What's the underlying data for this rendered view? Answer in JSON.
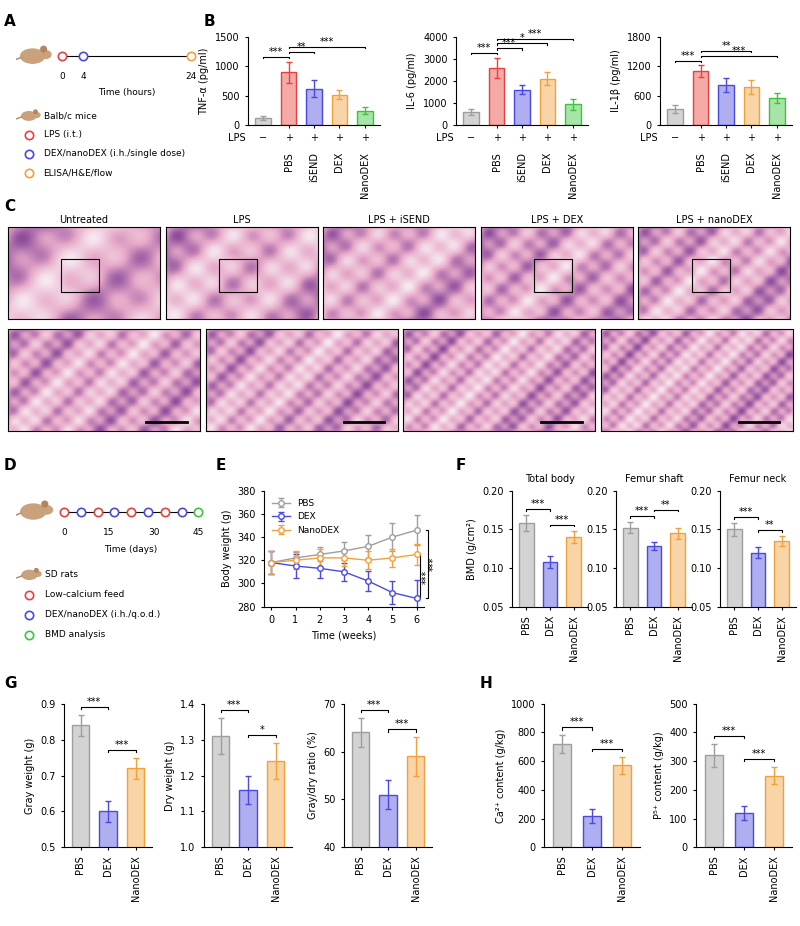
{
  "panel_letters": [
    "A",
    "B",
    "C",
    "D",
    "E",
    "F",
    "G",
    "H"
  ],
  "panels": {
    "A": {
      "subject": "Balb/c mice",
      "time_ticks": [
        0,
        4,
        24
      ],
      "time_label": "Time (hours)",
      "events": [
        {
          "text": "LPS (i.t.)",
          "color": "#e8413c",
          "times": [
            0
          ]
        },
        {
          "text": "DEX/nanoDEX (i.h./single dose)",
          "color": "#4a4ae0",
          "times": [
            4
          ]
        },
        {
          "text": "ELISA/H&E/flow",
          "color": "#f2a03c",
          "times": [
            24
          ]
        }
      ]
    },
    "C": {
      "titles": [
        "Untreated",
        "LPS",
        "LPS + iSEND",
        "LPS + DEX",
        "LPS + nanoDEX"
      ]
    },
    "D": {
      "subject": "SD rats",
      "time_ticks": [
        0,
        15,
        30,
        45
      ],
      "time_label": "Time (days)",
      "events": [
        {
          "text": "Low-calcium feed",
          "color": "#e8413c",
          "times": [
            0,
            11.25,
            22.5,
            33.75
          ]
        },
        {
          "text": "DEX/nanoDEX (i.h./q.o.d.)",
          "color": "#4a4ae0",
          "times": [
            5.625,
            16.875,
            28.125,
            39.375
          ]
        },
        {
          "text": "BMD analysis",
          "color": "#3cc43c",
          "times": [
            45
          ]
        }
      ]
    }
  },
  "chart_data": [
    {
      "type": "bar",
      "categories": [
        null,
        "PBS",
        "iSEND",
        "DEX",
        "NanoDEX"
      ],
      "values": [
        120,
        900,
        620,
        520,
        240
      ],
      "errors": [
        40,
        180,
        150,
        80,
        60
      ],
      "colors": [
        "#9e9e9e",
        "#e8413c",
        "#4a4ae0",
        "#f2a03c",
        "#3cc43c"
      ],
      "ylabel": "TNF-α (pg/ml)",
      "ylim": [
        0,
        1500
      ],
      "yticks": [
        0,
        500,
        1000,
        1500
      ],
      "lps_row": {
        "label": "LPS",
        "values": [
          "−",
          "+",
          "+",
          "+",
          "+"
        ]
      },
      "significance": [
        {
          "from": 0,
          "to": 1,
          "text": "***"
        },
        {
          "from": 1,
          "to": 2,
          "text": "**"
        },
        {
          "from": 1,
          "to": 4,
          "text": "***"
        }
      ]
    },
    {
      "type": "bar",
      "categories": [
        null,
        "PBS",
        "iSEND",
        "DEX",
        "NanoDEX"
      ],
      "values": [
        600,
        2600,
        1600,
        2100,
        950
      ],
      "errors": [
        150,
        450,
        200,
        300,
        250
      ],
      "colors": [
        "#9e9e9e",
        "#e8413c",
        "#4a4ae0",
        "#f2a03c",
        "#3cc43c"
      ],
      "ylabel": "IL-6 (pg/ml)",
      "ylim": [
        0,
        4000
      ],
      "yticks": [
        0,
        1000,
        2000,
        3000,
        4000
      ],
      "lps_row": {
        "label": "LPS",
        "values": [
          "−",
          "+",
          "+",
          "+",
          "+"
        ]
      },
      "significance": [
        {
          "from": 0,
          "to": 1,
          "text": "***"
        },
        {
          "from": 1,
          "to": 2,
          "text": "***"
        },
        {
          "from": 1,
          "to": 3,
          "text": "*"
        },
        {
          "from": 1,
          "to": 4,
          "text": "***"
        }
      ]
    },
    {
      "type": "bar",
      "categories": [
        null,
        "PBS",
        "iSEND",
        "DEX",
        "NanoDEX"
      ],
      "values": [
        320,
        1100,
        820,
        780,
        560
      ],
      "errors": [
        80,
        120,
        150,
        140,
        100
      ],
      "colors": [
        "#9e9e9e",
        "#e8413c",
        "#4a4ae0",
        "#f2a03c",
        "#3cc43c"
      ],
      "ylabel": "IL-1β (pg/ml)",
      "ylim": [
        0,
        1800
      ],
      "yticks": [
        0,
        600,
        1200,
        1800
      ],
      "lps_row": {
        "label": "LPS",
        "values": [
          "−",
          "+",
          "+",
          "+",
          "+"
        ]
      },
      "significance": [
        {
          "from": 0,
          "to": 1,
          "text": "***"
        },
        {
          "from": 1,
          "to": 4,
          "text": "***"
        },
        {
          "from": 1,
          "to": 3,
          "text": "**"
        }
      ]
    },
    {
      "type": "line",
      "x": [
        0,
        1,
        2,
        3,
        4,
        5,
        6
      ],
      "xlabel": "Time (weeks)",
      "ylabel": "Body weight (g)",
      "xlim": [
        -0.3,
        6.3
      ],
      "xticks": [
        0,
        1,
        2,
        3,
        4,
        5,
        6
      ],
      "ylim": [
        280,
        380
      ],
      "yticks": [
        280,
        300,
        320,
        340,
        360,
        380
      ],
      "legend": "upper left",
      "series": [
        {
          "name": "PBS",
          "color": "#9e9e9e",
          "marker": "o",
          "line_style": "solid",
          "values": [
            318,
            322,
            325,
            328,
            332,
            340,
            346
          ],
          "errors": [
            10,
            5,
            6,
            8,
            10,
            12,
            13
          ]
        },
        {
          "name": "DEX",
          "color": "#4a4ae0",
          "marker": "o",
          "line_style": "solid",
          "values": [
            318,
            315,
            313,
            310,
            302,
            292,
            287
          ],
          "errors": [
            10,
            10,
            8,
            8,
            9,
            10,
            16
          ]
        },
        {
          "name": "NanoDEX",
          "color": "#f2a03c",
          "marker": "o",
          "line_style": "solid",
          "values": [
            318,
            320,
            322,
            322,
            320,
            322,
            325
          ],
          "errors": [
            10,
            8,
            8,
            7,
            8,
            8,
            9
          ]
        }
      ],
      "significance": [
        {
          "x": 6,
          "from": "NanoDEX",
          "to": "DEX",
          "text": "***"
        },
        {
          "x": 6,
          "from": "PBS",
          "to": "DEX",
          "text": "***"
        }
      ]
    },
    {
      "type": "bar",
      "title": "Total body",
      "categories": [
        "PBS",
        "DEX",
        "NanoDEX"
      ],
      "values": [
        0.158,
        0.108,
        0.14
      ],
      "errors": [
        0.01,
        0.008,
        0.008
      ],
      "colors": [
        "#9e9e9e",
        "#4a4ae0",
        "#f2a03c"
      ],
      "ylabel": "BMD (g/cm²)",
      "ylim": [
        0.05,
        0.2
      ],
      "yticks": [
        0.05,
        {
          "value": 0.1,
          "label": "0.10"
        },
        0.15,
        {
          "value": 0.2,
          "label": "0.20"
        }
      ],
      "significance": [
        {
          "from": 0,
          "to": 1,
          "text": "***"
        },
        {
          "from": 1,
          "to": 2,
          "text": "***"
        }
      ]
    },
    {
      "type": "bar",
      "title": "Femur shaft",
      "categories": [
        "PBS",
        "DEX",
        "NanoDEX"
      ],
      "values": [
        0.152,
        0.128,
        0.145
      ],
      "errors": [
        0.007,
        0.005,
        0.007
      ],
      "colors": [
        "#9e9e9e",
        "#4a4ae0",
        "#f2a03c"
      ],
      "ylim": [
        0.05,
        0.2
      ],
      "yticks": [
        0.05,
        {
          "value": 0.1,
          "label": "0.10"
        },
        0.15,
        {
          "value": 0.2,
          "label": "0.20"
        }
      ],
      "significance": [
        {
          "from": 0,
          "to": 1,
          "text": "***"
        },
        {
          "from": 1,
          "to": 2,
          "text": "**"
        }
      ]
    },
    {
      "type": "bar",
      "title": "Femur neck",
      "categories": [
        "PBS",
        "DEX",
        "NanoDEX"
      ],
      "values": [
        0.15,
        0.12,
        0.135
      ],
      "errors": [
        0.008,
        0.007,
        0.006
      ],
      "colors": [
        "#9e9e9e",
        "#4a4ae0",
        "#f2a03c"
      ],
      "ylim": [
        0.05,
        0.2
      ],
      "yticks": [
        0.05,
        {
          "value": 0.1,
          "label": "0.10"
        },
        0.15,
        {
          "value": 0.2,
          "label": "0.20"
        }
      ],
      "significance": [
        {
          "from": 0,
          "to": 1,
          "text": "***"
        },
        {
          "from": 1,
          "to": 2,
          "text": "**"
        }
      ]
    },
    {
      "type": "bar",
      "categories": [
        "PBS",
        "DEX",
        "NanoDEX"
      ],
      "values": [
        0.84,
        0.6,
        0.72
      ],
      "errors": [
        0.03,
        0.03,
        0.03
      ],
      "colors": [
        "#9e9e9e",
        "#4a4ae0",
        "#f2a03c"
      ],
      "ylabel": "Gray weight (g)",
      "ylim": [
        0.5,
        0.9
      ],
      "yticks": [
        0.5,
        0.6,
        0.7,
        0.8,
        0.9
      ],
      "significance": [
        {
          "from": 0,
          "to": 1,
          "text": "***"
        },
        {
          "from": 1,
          "to": 2,
          "text": "***"
        }
      ]
    },
    {
      "type": "bar",
      "categories": [
        "PBS",
        "DEX",
        "NanoDEX"
      ],
      "values": [
        1.31,
        1.16,
        1.24
      ],
      "errors": [
        0.05,
        0.04,
        0.05
      ],
      "colors": [
        "#9e9e9e",
        "#4a4ae0",
        "#f2a03c"
      ],
      "ylabel": "Dry weight (g)",
      "ylim": [
        1.0,
        1.4
      ],
      "yticks": [
        1.0,
        1.1,
        1.2,
        1.3,
        1.4
      ],
      "significance": [
        {
          "from": 0,
          "to": 1,
          "text": "***"
        },
        {
          "from": 1,
          "to": 2,
          "text": "*"
        }
      ]
    },
    {
      "type": "bar",
      "categories": [
        "PBS",
        "DEX",
        "NanoDEX"
      ],
      "values": [
        64,
        51,
        59
      ],
      "errors": [
        3,
        3,
        4
      ],
      "colors": [
        "#9e9e9e",
        "#4a4ae0",
        "#f2a03c"
      ],
      "ylabel": "Gray/dry ratio (%)",
      "ylim": [
        40,
        70
      ],
      "yticks": [
        40,
        50,
        60,
        70
      ],
      "significance": [
        {
          "from": 0,
          "to": 1,
          "text": "***"
        },
        {
          "from": 1,
          "to": 2,
          "text": "***"
        }
      ]
    },
    {
      "type": "bar",
      "categories": [
        "PBS",
        "DEX",
        "NanoDEX"
      ],
      "values": [
        720,
        220,
        570
      ],
      "errors": [
        60,
        50,
        60
      ],
      "colors": [
        "#9e9e9e",
        "#4a4ae0",
        "#f2a03c"
      ],
      "ylabel": "Ca²⁺ content (g/kg)",
      "ylim": [
        0,
        1000
      ],
      "yticks": [
        0,
        200,
        400,
        600,
        800,
        1000
      ],
      "significance": [
        {
          "from": 0,
          "to": 1,
          "text": "***"
        },
        {
          "from": 1,
          "to": 2,
          "text": "***"
        }
      ]
    },
    {
      "type": "bar",
      "categories": [
        "PBS",
        "DEX",
        "NanoDEX"
      ],
      "values": [
        320,
        120,
        250
      ],
      "errors": [
        40,
        25,
        30
      ],
      "colors": [
        "#9e9e9e",
        "#4a4ae0",
        "#f2a03c"
      ],
      "ylabel": "P⁵⁺ content (g/kg)",
      "ylim": [
        0,
        500
      ],
      "yticks": [
        0,
        100,
        200,
        300,
        400,
        500
      ],
      "significance": [
        {
          "from": 0,
          "to": 1,
          "text": "***"
        },
        {
          "from": 1,
          "to": 2,
          "text": "***"
        }
      ]
    }
  ]
}
